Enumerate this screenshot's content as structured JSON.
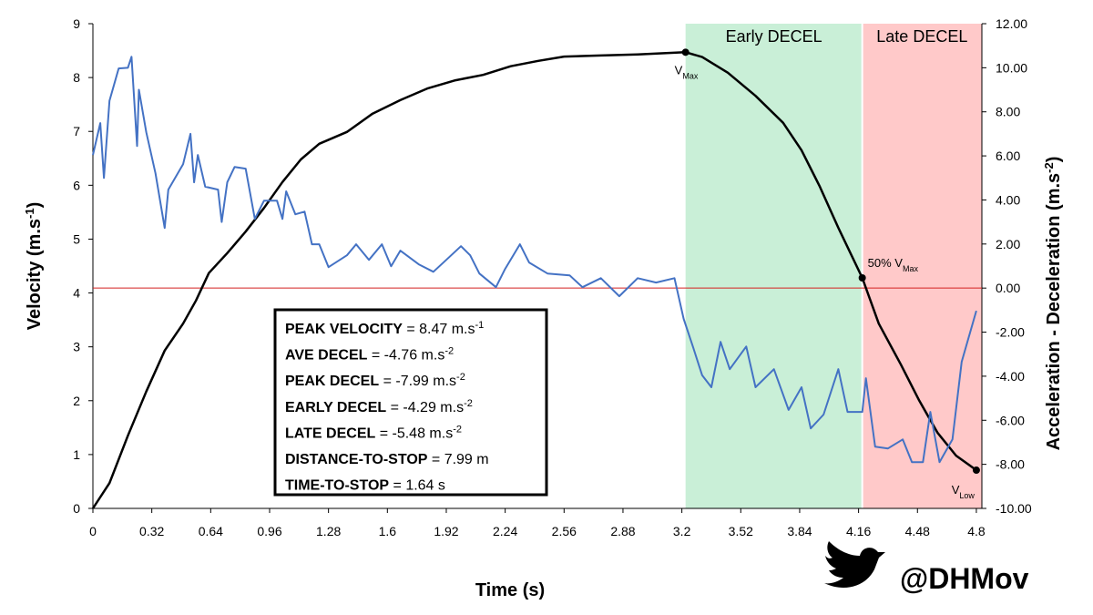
{
  "chart_data": {
    "type": "line",
    "x_label": "Time (s)",
    "y_label": {
      "text": "Velocity (m.s",
      "sup": "-1",
      "end": ")"
    },
    "y2_label": {
      "text": "Acceleration - Deceleration (m.s",
      "sup": "-2",
      "end": ")"
    },
    "xlim": [
      0,
      4.83
    ],
    "xticks": [
      0,
      0.32,
      0.64,
      0.96,
      1.28,
      1.6,
      1.92,
      2.24,
      2.56,
      2.88,
      3.2,
      3.52,
      3.84,
      4.16,
      4.48,
      4.8
    ],
    "ylim": [
      0,
      9
    ],
    "yticks": [
      0,
      1,
      2,
      3,
      4,
      5,
      6,
      7,
      8,
      9
    ],
    "y2lim": [
      -10,
      12
    ],
    "y2ticks": [
      {
        "value": -10,
        "label": "-10.00"
      },
      {
        "value": -8,
        "label": "-8.00"
      },
      {
        "value": -6,
        "label": "-6.00"
      },
      {
        "value": -4,
        "label": "-4.00"
      },
      {
        "value": -2,
        "label": "-2.00"
      },
      {
        "value": 0,
        "label": "0.00"
      },
      {
        "value": 2,
        "label": "2.00"
      },
      {
        "value": 4,
        "label": "4.00"
      },
      {
        "value": 6,
        "label": "6.00"
      },
      {
        "value": 8,
        "label": "8.00"
      },
      {
        "value": 10,
        "label": "10.00"
      },
      {
        "value": 12,
        "label": "12.00"
      }
    ],
    "regions": [
      {
        "label": "Early DECEL",
        "x": [
          3.22,
          4.18
        ],
        "color": "#c9efd7"
      },
      {
        "label": "Late DECEL",
        "x": [
          4.18,
          4.83
        ],
        "color": "#ffc9c9"
      }
    ],
    "reference_line": {
      "axis": "y2",
      "value": 0,
      "color": "#d42020"
    },
    "series": [
      {
        "name": "Velocity",
        "color": "#000000",
        "x": [
          0,
          0.09,
          0.19,
          0.29,
          0.39,
          0.49,
          0.56,
          0.63,
          0.73,
          0.83,
          0.93,
          1.03,
          1.13,
          1.23,
          1.38,
          1.52,
          1.67,
          1.82,
          1.97,
          2.12,
          2.27,
          2.42,
          2.56,
          2.76,
          2.96,
          3.22,
          3.31,
          3.45,
          3.6,
          3.75,
          3.85,
          3.95,
          4.05,
          4.18,
          4.27,
          4.39,
          4.49,
          4.59,
          4.69,
          4.8
        ],
        "values": [
          0,
          0.47,
          1.35,
          2.17,
          2.93,
          3.43,
          3.86,
          4.37,
          4.74,
          5.14,
          5.58,
          6.06,
          6.48,
          6.77,
          6.99,
          7.33,
          7.58,
          7.8,
          7.95,
          8.05,
          8.21,
          8.31,
          8.39,
          8.41,
          8.43,
          8.47,
          8.38,
          8.09,
          7.66,
          7.16,
          6.65,
          5.97,
          5.21,
          4.28,
          3.43,
          2.67,
          2.0,
          1.4,
          0.98,
          0.71
        ]
      },
      {
        "name": "Acceleration",
        "color": "#4472c4",
        "axis": "y2",
        "x": [
          0,
          0.04,
          0.06,
          0.09,
          0.14,
          0.19,
          0.21,
          0.24,
          0.25,
          0.29,
          0.34,
          0.39,
          0.41,
          0.49,
          0.53,
          0.55,
          0.57,
          0.61,
          0.68,
          0.7,
          0.73,
          0.77,
          0.83,
          0.88,
          0.93,
          1.0,
          1.03,
          1.05,
          1.1,
          1.15,
          1.19,
          1.23,
          1.28,
          1.38,
          1.43,
          1.5,
          1.57,
          1.62,
          1.67,
          1.77,
          1.85,
          1.92,
          2.0,
          2.05,
          2.1,
          2.19,
          2.24,
          2.32,
          2.37,
          2.47,
          2.59,
          2.66,
          2.76,
          2.86,
          2.96,
          3.06,
          3.16,
          3.21,
          3.26,
          3.31,
          3.36,
          3.41,
          3.46,
          3.55,
          3.6,
          3.7,
          3.78,
          3.85,
          3.9,
          3.97,
          4.05,
          4.1,
          4.18,
          4.2,
          4.25,
          4.32,
          4.4,
          4.45,
          4.51,
          4.55,
          4.6,
          4.67,
          4.72,
          4.8
        ],
        "values": [
          6.04,
          7.49,
          5.0,
          8.5,
          9.97,
          10.0,
          10.5,
          6.45,
          9.0,
          7.07,
          5.21,
          2.73,
          4.47,
          5.62,
          7.0,
          4.8,
          6.04,
          4.6,
          4.47,
          3.0,
          4.8,
          5.5,
          5.42,
          3.14,
          3.97,
          3.97,
          3.14,
          4.39,
          3.35,
          3.47,
          1.99,
          1.99,
          0.95,
          1.49,
          1.99,
          1.28,
          1.99,
          0.99,
          1.7,
          1.08,
          0.74,
          1.28,
          1.9,
          1.49,
          0.66,
          0.04,
          0.87,
          1.99,
          1.16,
          0.66,
          0.58,
          0.04,
          0.45,
          -0.37,
          0.45,
          0.25,
          0.45,
          -1.4,
          -2.65,
          -3.96,
          -4.5,
          -2.44,
          -3.68,
          -2.65,
          -4.5,
          -3.68,
          -5.53,
          -4.5,
          -6.37,
          -5.74,
          -3.68,
          -5.62,
          -5.62,
          -4.09,
          -7.2,
          -7.28,
          -6.87,
          -7.9,
          -7.9,
          -5.62,
          -7.9,
          -6.87,
          -3.35,
          -1.03
        ]
      }
    ],
    "annotations": [
      {
        "x": 3.22,
        "y": 8.47,
        "text": "V",
        "sub": "Max"
      },
      {
        "x": 4.18,
        "y": 4.28,
        "text": "50% V",
        "sub": "Max"
      },
      {
        "x": 4.8,
        "y": 0.71,
        "text": "V",
        "sub": "Low"
      }
    ],
    "stats": [
      {
        "label": "PEAK VELOCITY",
        "value": " = 8.47 m.s",
        "sup": "-1"
      },
      {
        "label": "AVE DECEL",
        "value": " = -4.76 m.s",
        "sup": "-2"
      },
      {
        "label": "PEAK DECEL",
        "value": " = -7.99 m.s",
        "sup": "-2"
      },
      {
        "label": "EARLY DECEL",
        "value": " = -4.29 m.s",
        "sup": "-2"
      },
      {
        "label": "LATE DECEL",
        "value": " = -5.48 m.s",
        "sup": "-2"
      },
      {
        "label": "DISTANCE-TO-STOP",
        "value": " = 7.99 m"
      },
      {
        "label": "TIME-TO-STOP",
        "value": " = 1.64 s"
      }
    ],
    "handle": "@DHMov"
  }
}
